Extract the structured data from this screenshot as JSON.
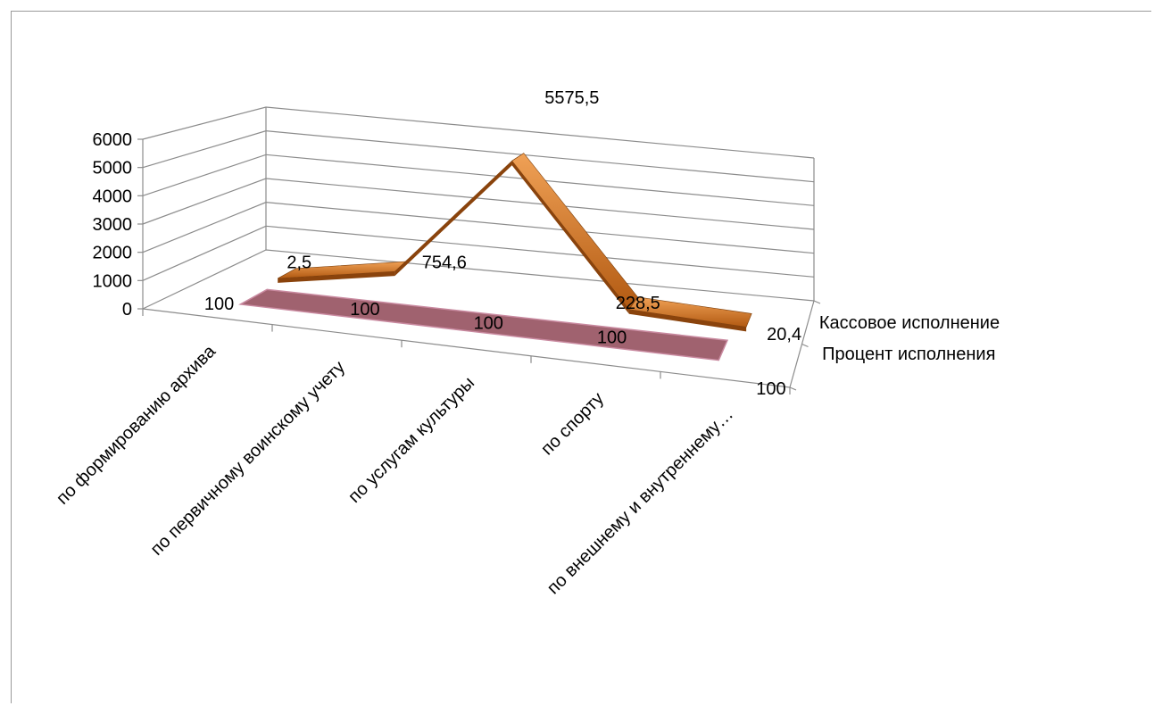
{
  "chart_data": {
    "type": "line",
    "view": "3d",
    "categories": [
      "по формированию архива",
      "по первичному воинскому учету",
      "по услугам культуры",
      "по спорту",
      "по внешнему и внутреннему…"
    ],
    "series": [
      {
        "name": "Кассовое исполнение",
        "values": [
          2.5,
          754.6,
          5575.5,
          228.5,
          20.4
        ],
        "labels": [
          "2,5",
          "754,6",
          "5575,5",
          "228,5",
          "20,4"
        ],
        "color": "#e07b24"
      },
      {
        "name": "Процент исполнения",
        "values": [
          100,
          100,
          100,
          100,
          100
        ],
        "labels": [
          "100",
          "100",
          "100",
          "100",
          "100"
        ],
        "color": "#a0626f"
      }
    ],
    "yticks": [
      "0",
      "1000",
      "2000",
      "3000",
      "4000",
      "5000",
      "6000"
    ],
    "ylim": [
      0,
      6000
    ],
    "grid": true,
    "legend": "depth-axis-right"
  }
}
